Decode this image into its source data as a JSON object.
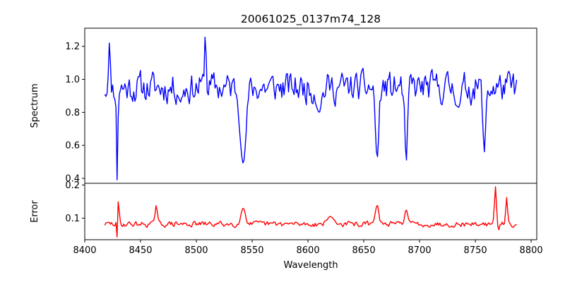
{
  "chart_data": {
    "type": "line",
    "title": "20061025_0137m74_128",
    "xlabel": "Wavelength",
    "xlim": [
      8400,
      8805
    ],
    "x_ticks": [
      8400,
      8450,
      8500,
      8550,
      8600,
      8650,
      8700,
      8750,
      8800
    ],
    "x_tick_labels": [
      "8400",
      "8450",
      "8500",
      "8550",
      "8600",
      "8650",
      "8700",
      "8750",
      "8800"
    ],
    "panels": [
      {
        "name": "spectrum",
        "ylabel": "Spectrum",
        "ylim": [
          0.37,
          1.31
        ],
        "y_ticks": [
          0.4,
          0.6,
          0.8,
          1.0,
          1.2
        ],
        "y_tick_labels": [
          "0.4",
          "0.6",
          "0.8",
          "1.0",
          "1.2"
        ],
        "series": [
          {
            "name": "Spectrum",
            "color": "#0000ff",
            "x_start": 8418,
            "x_end": 8787,
            "base": 0.95,
            "noise": 0.09,
            "seed": 11,
            "features": [
              {
                "x": 8429,
                "value": 0.39,
                "width": 0.6
              },
              {
                "x": 8422,
                "value": 1.22,
                "width": 0.8
              },
              {
                "x": 8542,
                "value": 0.49,
                "width": 2.5
              },
              {
                "x": 8662,
                "value": 0.52,
                "width": 1.5
              },
              {
                "x": 8688,
                "value": 0.5,
                "width": 1.2
              },
              {
                "x": 8758,
                "value": 0.56,
                "width": 1.2
              },
              {
                "x": 8508,
                "value": 1.27,
                "width": 0.8
              },
              {
                "x": 8486,
                "value": 0.86,
                "width": 1.0
              },
              {
                "x": 8610,
                "value": 0.8,
                "width": 2.0
              },
              {
                "x": 8735,
                "value": 0.83,
                "width": 2.0
              }
            ]
          }
        ]
      },
      {
        "name": "error",
        "ylabel": "Error",
        "ylim": [
          0.035,
          0.205
        ],
        "y_ticks": [
          0.1,
          0.2
        ],
        "y_tick_labels": [
          "0.1",
          "0.2"
        ],
        "series": [
          {
            "name": "Error",
            "color": "#ff0000",
            "x_start": 8418,
            "x_end": 8787,
            "base": 0.082,
            "noise": 0.008,
            "seed": 29,
            "features": [
              {
                "x": 8430,
                "value": 0.155,
                "width": 0.8
              },
              {
                "x": 8429,
                "value": 0.043,
                "width": 0.4
              },
              {
                "x": 8464,
                "value": 0.138,
                "width": 1.0
              },
              {
                "x": 8542,
                "value": 0.13,
                "width": 2.0
              },
              {
                "x": 8662,
                "value": 0.14,
                "width": 1.5
              },
              {
                "x": 8688,
                "value": 0.125,
                "width": 1.5
              },
              {
                "x": 8768,
                "value": 0.195,
                "width": 0.8
              },
              {
                "x": 8778,
                "value": 0.162,
                "width": 0.8
              },
              {
                "x": 8771,
                "value": 0.065,
                "width": 0.6
              },
              {
                "x": 8620,
                "value": 0.105,
                "width": 3.0
              }
            ]
          }
        ]
      }
    ]
  }
}
